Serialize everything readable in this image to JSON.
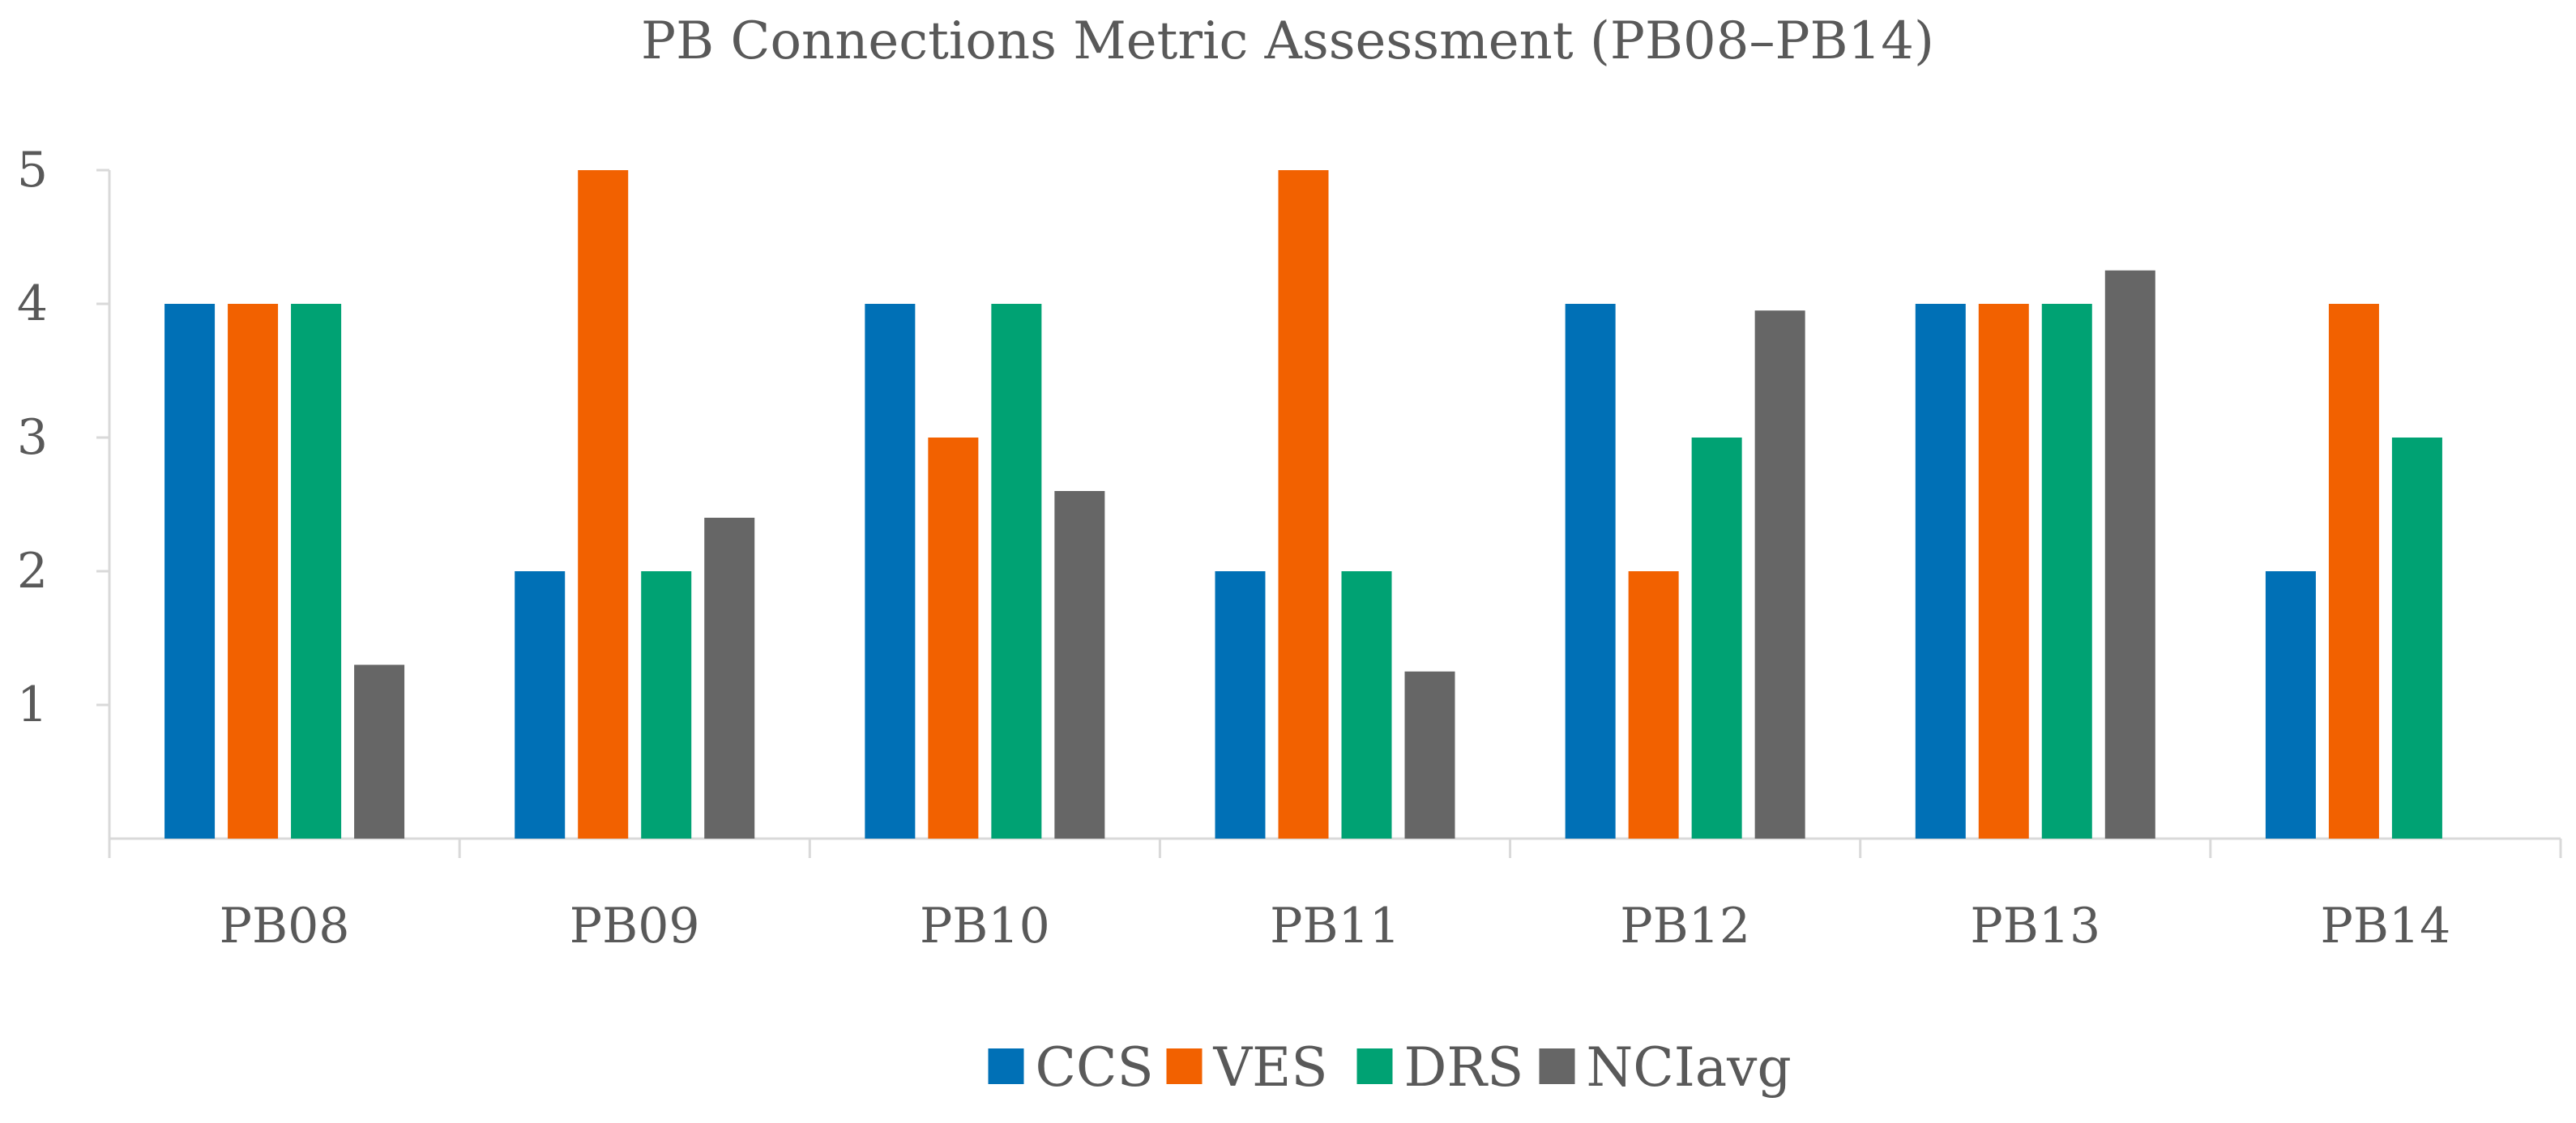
{
  "chart_data": {
    "type": "bar",
    "title": "PB Connections Metric Assessment (PB08–PB14)",
    "xlabel": "",
    "ylabel": "",
    "categories": [
      "PB08",
      "PB09",
      "PB10",
      "PB11",
      "PB12",
      "PB13",
      "PB14"
    ],
    "series": [
      {
        "name": "CCS",
        "color": "#0070b6",
        "values": [
          4,
          2,
          4,
          2,
          4,
          4,
          2
        ]
      },
      {
        "name": "VES",
        "color": "#f26100",
        "values": [
          4,
          5,
          3,
          5,
          2,
          4,
          4
        ]
      },
      {
        "name": "DRS",
        "color": "#00a273",
        "values": [
          4,
          2,
          4,
          2,
          3,
          4,
          3
        ]
      },
      {
        "name": "NCIavg",
        "color": "#666666",
        "values": [
          1.3,
          2.4,
          2.6,
          1.25,
          3.95,
          4.25,
          null
        ]
      }
    ],
    "yticks": [
      1,
      2,
      3,
      4,
      5
    ],
    "ylim": [
      0,
      5
    ],
    "grid": false,
    "legend_position": "bottom-center"
  }
}
